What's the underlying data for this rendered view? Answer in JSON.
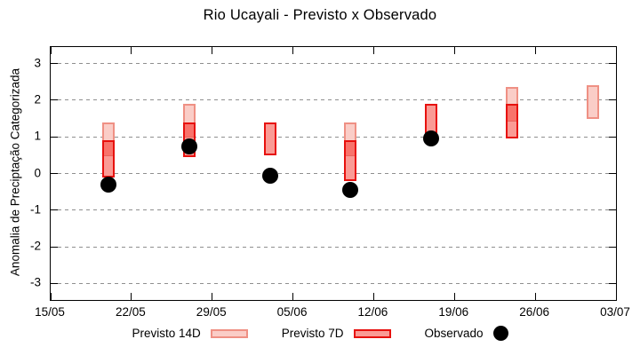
{
  "title": "Rio Ucayali - Previsto x Observado",
  "chart_data": {
    "type": "candlestick",
    "title": "Rio Ucayali - Previsto x Observado",
    "ylabel": "Anomalia de Preciptação Categorizada",
    "ylim": [
      -3.45,
      3.45
    ],
    "yticks": [
      -3,
      -2,
      -1,
      0,
      1,
      2,
      3
    ],
    "x_axis_days_span": 49,
    "xticks": [
      {
        "label": "15/05",
        "day": 0
      },
      {
        "label": "22/05",
        "day": 7
      },
      {
        "label": "29/05",
        "day": 14
      },
      {
        "label": "05/06",
        "day": 21
      },
      {
        "label": "12/06",
        "day": 28
      },
      {
        "label": "19/06",
        "day": 35
      },
      {
        "label": "26/06",
        "day": 42
      },
      {
        "label": "03/07",
        "day": 49
      }
    ],
    "grid": "horizontal-dashed",
    "legend_position": "bottom-center",
    "series": [
      {
        "name": "Previsto 14D",
        "type": "box",
        "fill": "#FACDC7",
        "border": "#EF9084"
      },
      {
        "name": "Previsto 7D",
        "type": "box",
        "fill": "#FA9B95",
        "border": "#E7110E",
        "overlap_fill": "#F8736B",
        "overlap_divider": "#E8655C"
      },
      {
        "name": "Observado",
        "type": "point",
        "color": "#000000"
      }
    ],
    "points": [
      {
        "day": 5,
        "date": "20/05",
        "previsto_14d": [
          0.5,
          1.4
        ],
        "previsto_7d": [
          -0.1,
          0.9
        ],
        "observado": -0.3
      },
      {
        "day": 12,
        "date": "27/05",
        "previsto_14d": [
          1.0,
          1.9
        ],
        "previsto_7d": [
          0.45,
          1.4
        ],
        "observado": 0.75
      },
      {
        "day": 19,
        "date": "03/06",
        "previsto_14d": null,
        "previsto_7d": [
          0.5,
          1.4
        ],
        "observado": -0.05
      },
      {
        "day": 26,
        "date": "10/06",
        "previsto_14d": [
          0.5,
          1.4
        ],
        "previsto_7d": [
          -0.2,
          0.9
        ],
        "observado": -0.45
      },
      {
        "day": 33,
        "date": "17/06",
        "previsto_14d": null,
        "previsto_7d": [
          1.0,
          1.9
        ],
        "observado": 0.95
      },
      {
        "day": 40,
        "date": "24/06",
        "previsto_14d": [
          1.45,
          2.35
        ],
        "previsto_7d": [
          0.95,
          1.9
        ],
        "observado": null
      },
      {
        "day": 47,
        "date": "01/07",
        "previsto_14d": [
          1.5,
          2.4
        ],
        "previsto_7d": null,
        "observado": null
      }
    ],
    "axis_color": "#000000",
    "grid_color": "#8f8f8f",
    "background": "#ffffff"
  },
  "legend": {
    "items": [
      {
        "label": "Previsto 14D"
      },
      {
        "label": "Previsto 7D"
      },
      {
        "label": "Observado"
      }
    ]
  }
}
